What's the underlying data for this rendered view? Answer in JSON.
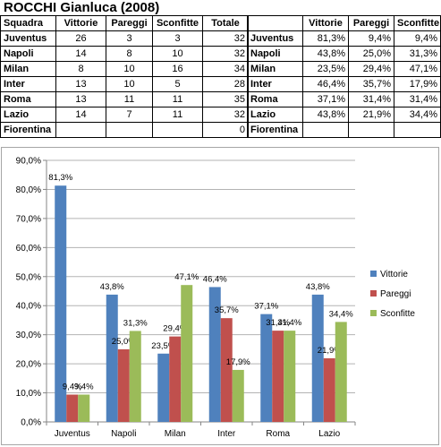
{
  "sheet": {
    "title": "ROCCHI Gianluca (2008)",
    "table1": {
      "headers": [
        "Squadra",
        "Vittorie",
        "Pareggi",
        "Sconfitte",
        "Totale"
      ],
      "rows": [
        [
          "Juventus",
          "26",
          "3",
          "3",
          "32"
        ],
        [
          "Napoli",
          "14",
          "8",
          "10",
          "32"
        ],
        [
          "Milan",
          "8",
          "10",
          "16",
          "34"
        ],
        [
          "Inter",
          "13",
          "10",
          "5",
          "28"
        ],
        [
          "Roma",
          "13",
          "11",
          "11",
          "35"
        ],
        [
          "Lazio",
          "14",
          "7",
          "11",
          "32"
        ],
        [
          "Fiorentina",
          "",
          "",
          "",
          "0"
        ]
      ]
    },
    "table2": {
      "headers": [
        "",
        "Vittorie",
        "Pareggi",
        "Sconfitte"
      ],
      "rows": [
        [
          "Juventus",
          "81,3%",
          "9,4%",
          "9,4%"
        ],
        [
          "Napoli",
          "43,8%",
          "25,0%",
          "31,3%"
        ],
        [
          "Milan",
          "23,5%",
          "29,4%",
          "47,1%"
        ],
        [
          "Inter",
          "46,4%",
          "35,7%",
          "17,9%"
        ],
        [
          "Roma",
          "37,1%",
          "31,4%",
          "31,4%"
        ],
        [
          "Lazio",
          "43,8%",
          "21,9%",
          "34,4%"
        ],
        [
          "Fiorentina",
          "",
          "",
          ""
        ]
      ]
    }
  },
  "chart_data": {
    "type": "bar",
    "categories": [
      "Juventus",
      "Napoli",
      "Milan",
      "Inter",
      "Roma",
      "Lazio"
    ],
    "series": [
      {
        "name": "Vittorie",
        "color": "#4f81bd",
        "values": [
          81.3,
          43.8,
          23.5,
          46.4,
          37.1,
          43.8
        ],
        "labels": [
          "81,3%",
          "43,8%",
          "23,5%",
          "46,4%",
          "37,1%",
          "43,8%"
        ]
      },
      {
        "name": "Pareggi",
        "color": "#c0504d",
        "values": [
          9.4,
          25.0,
          29.4,
          35.7,
          31.4,
          21.9
        ],
        "labels": [
          "9,4%",
          "25,0%",
          "29,4%",
          "35,7%",
          "31,4%",
          "21,9%"
        ]
      },
      {
        "name": "Sconfitte",
        "color": "#9bbb59",
        "values": [
          9.4,
          31.3,
          47.1,
          17.9,
          31.4,
          34.4
        ],
        "labels": [
          "9,4%",
          "31,3%",
          "47,1%",
          "17,9%",
          "31,4%",
          "34,4%"
        ]
      }
    ],
    "ylim": [
      0,
      90
    ],
    "yticks": [
      "0,0%",
      "10,0%",
      "20,0%",
      "30,0%",
      "40,0%",
      "50,0%",
      "60,0%",
      "70,0%",
      "80,0%",
      "90,0%"
    ],
    "grid": true,
    "legend_position": "right"
  }
}
